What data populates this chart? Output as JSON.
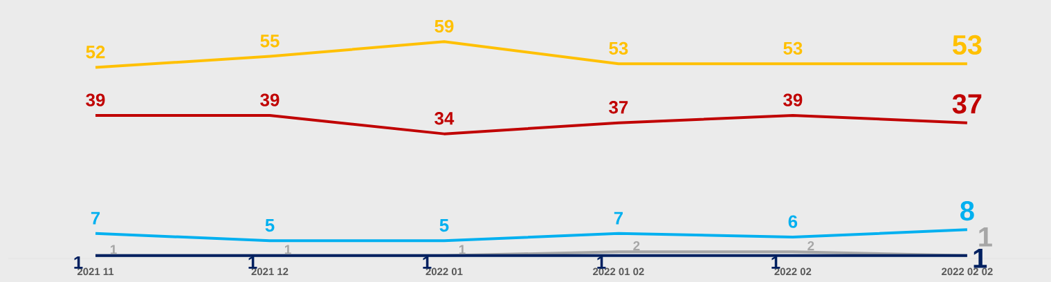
{
  "chart_data": {
    "type": "line",
    "categories": [
      "2021  11",
      "2021  12",
      "2022  01",
      "2022  01  02",
      "2022  02",
      "2022  02  02"
    ],
    "series": [
      {
        "color": "#ffc000",
        "values": [
          52,
          55,
          59,
          53,
          53,
          53
        ]
      },
      {
        "color": "#c00000",
        "values": [
          39,
          39,
          34,
          37,
          39,
          37
        ]
      },
      {
        "color": "#00b0f0",
        "values": [
          7,
          5,
          5,
          7,
          6,
          8
        ]
      },
      {
        "color": "#a6a6a6",
        "values": [
          1,
          1,
          1,
          2,
          2,
          1
        ]
      },
      {
        "color": "#002060",
        "values": [
          1,
          1,
          1,
          1,
          1,
          1
        ]
      }
    ],
    "data_labels": true,
    "marker": "none",
    "line_style": "solid"
  }
}
